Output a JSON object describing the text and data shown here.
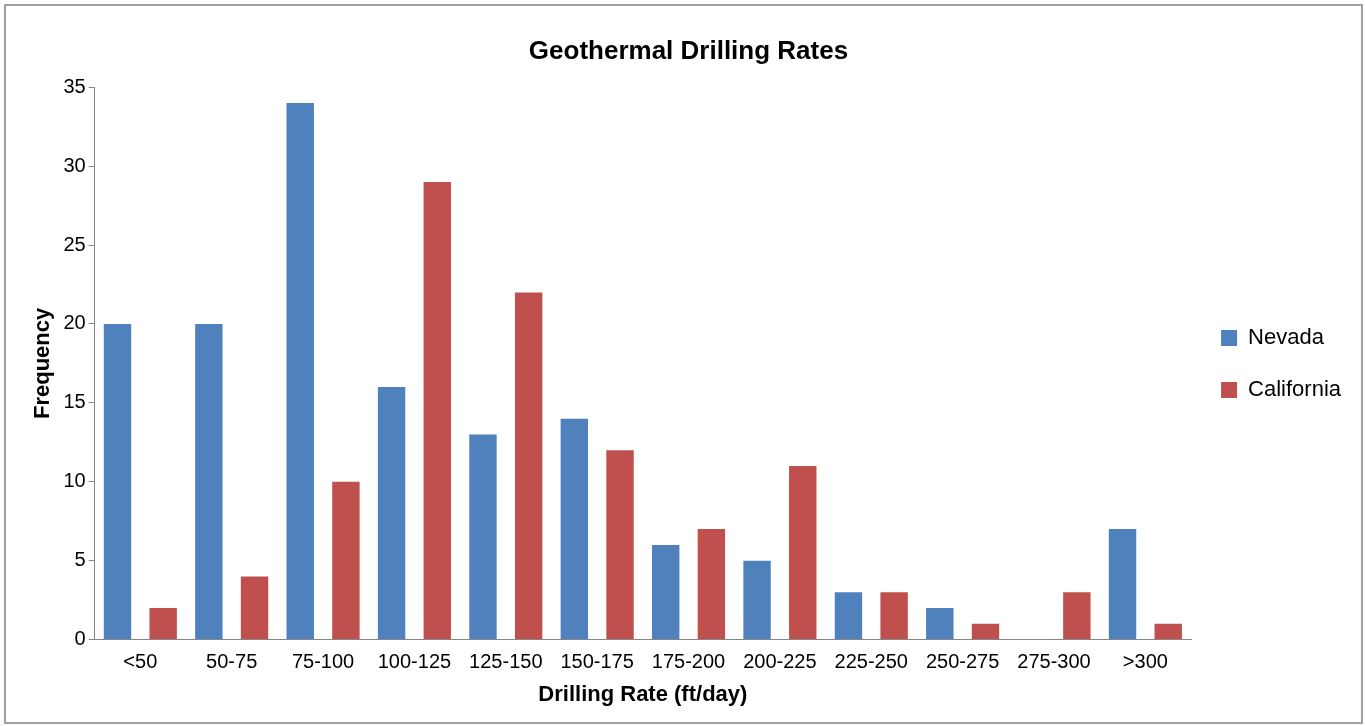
{
  "chart_data": {
    "type": "bar",
    "title": "Geothermal Drilling Rates",
    "xlabel": "Drilling Rate (ft/day)",
    "ylabel": "Frequency",
    "categories": [
      "<50",
      "50-75",
      "75-100",
      "100-125",
      "125-150",
      "150-175",
      "175-200",
      "200-225",
      "225-250",
      "250-275",
      "275-300",
      ">300"
    ],
    "series": [
      {
        "name": "Nevada",
        "color": "#4f81bd",
        "values": [
          20,
          20,
          34,
          16,
          13,
          14,
          6,
          5,
          3,
          2,
          0,
          7
        ]
      },
      {
        "name": "California",
        "color": "#c0504d",
        "values": [
          2,
          4,
          10,
          29,
          22,
          12,
          7,
          11,
          3,
          1,
          3,
          1
        ]
      }
    ],
    "ylim": [
      0,
      35
    ],
    "yticks": [
      0,
      5,
      10,
      15,
      20,
      25,
      30,
      35
    ],
    "grid": false,
    "legend": "right"
  }
}
